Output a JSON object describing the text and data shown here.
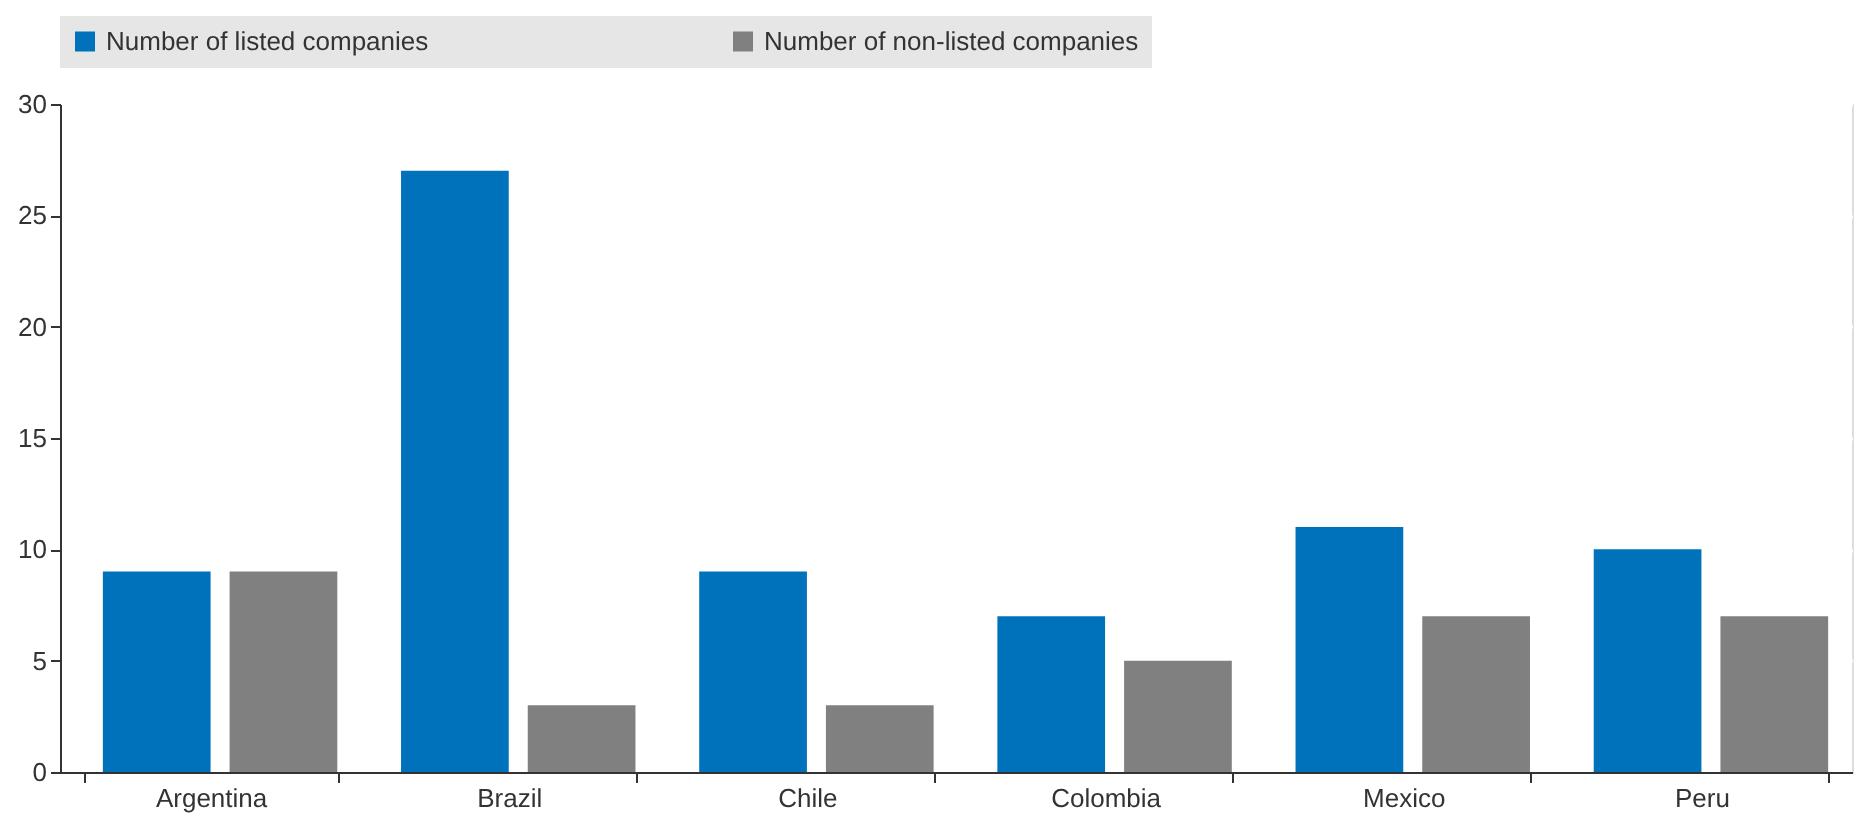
{
  "chart_data": {
    "type": "bar",
    "categories": [
      "Argentina",
      "Brazil",
      "Chile",
      "Colombia",
      "Mexico",
      "Peru"
    ],
    "series": [
      {
        "name": "Number of listed companies",
        "color": "#0072bc",
        "values": [
          9,
          27,
          9,
          7,
          11,
          10
        ]
      },
      {
        "name": "Number of non-listed companies",
        "color": "#808080",
        "values": [
          9,
          3,
          3,
          5,
          7,
          7
        ]
      }
    ],
    "ylim": [
      0,
      30
    ],
    "yticks": [
      0,
      5,
      10,
      15,
      20,
      25,
      30
    ],
    "grid": true,
    "legend": "top"
  }
}
